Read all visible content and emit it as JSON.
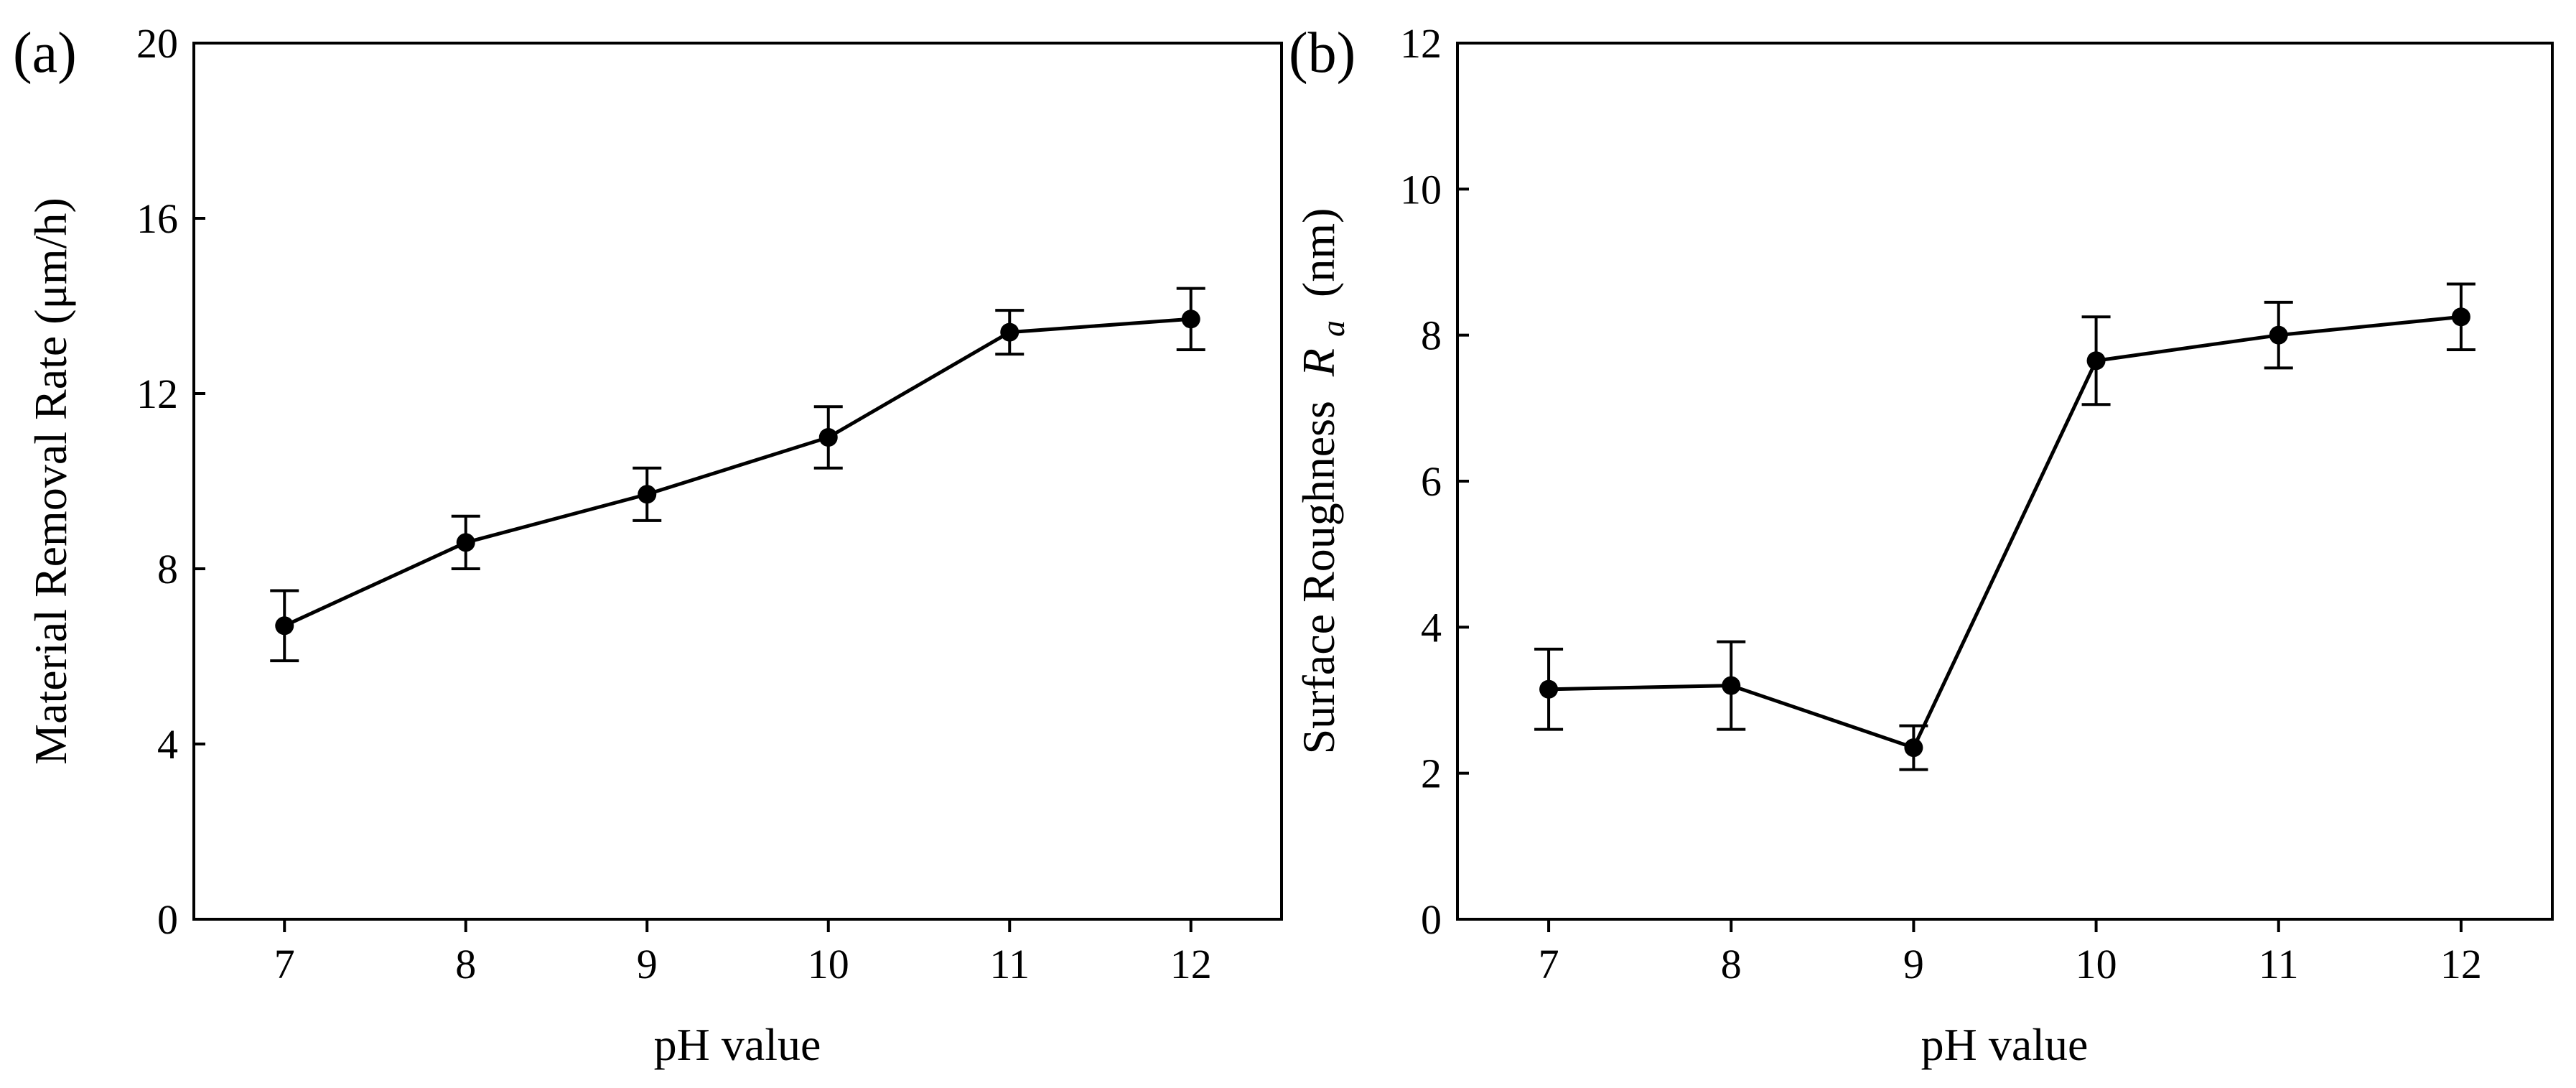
{
  "chart_data": [
    {
      "type": "line",
      "panel_label": "(a)",
      "x": [
        7,
        8,
        9,
        10,
        11,
        12
      ],
      "series": [
        {
          "name": "Material Removal Rate",
          "values": [
            6.7,
            8.6,
            9.7,
            11.0,
            13.4,
            13.7
          ],
          "errors": [
            0.8,
            0.6,
            0.6,
            0.7,
            0.5,
            0.7
          ]
        }
      ],
      "xlabel": "pH value",
      "ylabel": "Material Removal Rate (μm/h)",
      "xlim": [
        6.5,
        12.5
      ],
      "ylim": [
        0,
        20
      ],
      "xticks": [
        7,
        8,
        9,
        10,
        11,
        12
      ],
      "yticks": [
        0,
        4,
        8,
        12,
        16,
        20
      ],
      "grid": false,
      "marker": "filled-circle",
      "line_color": "#000000"
    },
    {
      "type": "line",
      "panel_label": "(b)",
      "x": [
        7,
        8,
        9,
        10,
        11,
        12
      ],
      "series": [
        {
          "name": "Surface Roughness Ra",
          "values": [
            3.15,
            3.2,
            2.35,
            7.65,
            8.0,
            8.25
          ],
          "errors": [
            0.55,
            0.6,
            0.3,
            0.6,
            0.45,
            0.45
          ]
        }
      ],
      "xlabel": "pH value",
      "ylabel_prefix": "Surface Roughness",
      "ylabel_symbol": "R",
      "ylabel_subscript": "a",
      "ylabel_unit": "(nm)",
      "xlim": [
        6.5,
        12.5
      ],
      "ylim": [
        0,
        12
      ],
      "xticks": [
        7,
        8,
        9,
        10,
        11,
        12
      ],
      "yticks": [
        0,
        2,
        4,
        6,
        8,
        10,
        12
      ],
      "grid": false,
      "marker": "filled-circle",
      "line_color": "#000000"
    }
  ]
}
